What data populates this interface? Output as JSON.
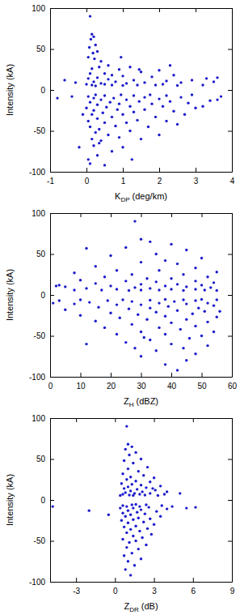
{
  "chart_data": [
    {
      "type": "scatter",
      "xlabel": [
        "K",
        "DP",
        " (deg/km)"
      ],
      "ylabel": "Intensity (kA)",
      "xlim": [
        -1,
        4
      ],
      "xticks": [
        -1,
        0,
        1,
        2,
        3,
        4
      ],
      "ylim": [
        -100,
        100
      ],
      "yticks": [
        -100,
        -50,
        0,
        50,
        100
      ],
      "series": [
        {
          "color": "#1a1acc",
          "marker": "circle",
          "x": [
            0.1,
            0.15,
            0.2,
            0.12,
            0.25,
            0.08,
            0.3,
            0.18,
            0.05,
            0.22,
            0.4,
            0.6,
            0.35,
            0.15,
            1.2,
            0.9,
            1.5,
            2.0,
            0.5,
            0.1,
            0.7,
            1.0,
            1.8,
            2.4,
            2.9,
            3.3,
            3.6,
            3.5,
            0.3,
            0.05,
            0.6,
            1.3,
            2.2,
            0.2,
            0.8,
            1.6,
            2.6,
            0.4,
            1.1,
            2.1,
            0.0,
            0.5,
            1.4,
            1.9,
            0.15,
            0.7,
            1.0,
            2.5,
            3.2,
            0.25,
            -0.3,
            -0.6,
            0.95,
            1.45,
            2.3,
            0.1,
            0.5,
            0.3,
            0.05,
            0.7,
            -0.2,
            0.2,
            1.0,
            0.4,
            0.15,
            0.9,
            1.5,
            0.6,
            0.25,
            1.2,
            2.0,
            0.35,
            0.1,
            0.8,
            1.7,
            2.5,
            0.5,
            1.1,
            0.05,
            1.4,
            2.2,
            0.3,
            0.7,
            1.9,
            0.15,
            1.0,
            2.7,
            0.45,
            1.3,
            2.4,
            0.2,
            0.85,
            1.6,
            3.0,
            0.0,
            0.55,
            1.2,
            2.1,
            0.3,
            0.9,
            1.8,
            2.8,
            0.1,
            0.65,
            1.45,
            2.3,
            3.4,
            0.4,
            1.1,
            2.0,
            0.2,
            0.75,
            1.6,
            2.6,
            3.7,
            0.05,
            0.5,
            1.3,
            2.2,
            0.25,
            0.95,
            1.75,
            2.9,
            -0.4,
            -0.8,
            -0.1,
            3.6,
            3.2,
            0.35,
            1.25
          ],
          "values": [
            90,
            68,
            65,
            62,
            55,
            52,
            47,
            45,
            40,
            38,
            35,
            30,
            28,
            26,
            28,
            25,
            22,
            24,
            20,
            20,
            18,
            17,
            16,
            18,
            12,
            14,
            15,
            10,
            15,
            14,
            13,
            12,
            11,
            10,
            10,
            9,
            9,
            8,
            8,
            7,
            7,
            7,
            6,
            6,
            6,
            6,
            5.5,
            5.5,
            6,
            5,
            9,
            12,
            40,
            25,
            30,
            -90,
            -92,
            -80,
            -85,
            -75,
            -70,
            -68,
            -70,
            -62,
            -60,
            -58,
            -60,
            -55,
            -52,
            -50,
            -55,
            -48,
            -45,
            -44,
            -45,
            -42,
            -40,
            -40,
            -38,
            -37,
            -38,
            -35,
            -33,
            -33,
            -30,
            -30,
            -30,
            -28,
            -27,
            -26,
            -25,
            -24,
            -24,
            -22,
            -22,
            -21,
            -20,
            -20,
            -18,
            -17,
            -17,
            -16,
            -15,
            -15,
            -14,
            -14,
            -13,
            -12,
            -12,
            -11,
            -10,
            -10,
            -9,
            -9,
            -8,
            -8,
            -7,
            -7,
            -7,
            -6,
            -6,
            -6,
            -6,
            -8,
            -10,
            -30,
            -12,
            -20,
            -65,
            -85
          ]
        }
      ]
    },
    {
      "type": "scatter",
      "xlabel": [
        "Z",
        "H",
        " (dBZ)"
      ],
      "ylabel": "Intensity (kA)",
      "xlim": [
        0,
        60
      ],
      "xticks": [
        0,
        10,
        20,
        30,
        40,
        50,
        60
      ],
      "ylim": [
        -100,
        100
      ],
      "yticks": [
        -100,
        -50,
        0,
        50,
        100
      ],
      "series": [
        {
          "color": "#1a1acc",
          "marker": "circle",
          "x": [
            28,
            30,
            33,
            40,
            25,
            12,
            45,
            35,
            20,
            50,
            38,
            30,
            42,
            15,
            48,
            22,
            36,
            55,
            8,
            27,
            44,
            52,
            18,
            32,
            40,
            3,
            10,
            25,
            48,
            35,
            54,
            15,
            30,
            42,
            50,
            20,
            38,
            5,
            45,
            28,
            53,
            12,
            33,
            40,
            22,
            48,
            17,
            36,
            51,
            26,
            44,
            8,
            30,
            55,
            2,
            42,
            38,
            45,
            30,
            48,
            35,
            28,
            52,
            40,
            25,
            33,
            46,
            12,
            50,
            38,
            22,
            30,
            54,
            43,
            18,
            36,
            48,
            27,
            40,
            52,
            15,
            32,
            45,
            23,
            55,
            38,
            10,
            29,
            47,
            20,
            35,
            51,
            42,
            5,
            26,
            33,
            49,
            16,
            39,
            54,
            22,
            30,
            45,
            8,
            36,
            52,
            13,
            27,
            41,
            48,
            19,
            33,
            55,
            3,
            24,
            44,
            10,
            38,
            50,
            1,
            56,
            31,
            44
          ],
          "values": [
            90,
            68,
            65,
            62,
            58,
            57,
            55,
            50,
            48,
            45,
            42,
            40,
            38,
            35,
            33,
            30,
            30,
            28,
            27,
            25,
            25,
            22,
            22,
            20,
            20,
            12,
            18,
            17,
            17,
            16,
            15,
            14,
            13,
            13,
            12,
            11,
            11,
            10,
            10,
            9,
            9,
            8,
            8,
            7,
            7,
            7,
            6,
            6,
            6,
            5.5,
            5.5,
            6,
            6,
            5.5,
            11,
            -92,
            -85,
            -80,
            -75,
            -72,
            -68,
            -65,
            -62,
            -60,
            -58,
            -55,
            -53,
            -60,
            -50,
            -48,
            -48,
            -45,
            -45,
            -42,
            -40,
            -40,
            -38,
            -36,
            -34,
            -33,
            -32,
            -30,
            -30,
            -28,
            -27,
            -26,
            -25,
            -24,
            -23,
            -22,
            -21,
            -20,
            -19,
            -18,
            -17,
            -16,
            -16,
            -15,
            -14,
            -13,
            -12,
            -12,
            -11,
            -11,
            -10,
            -10,
            -9,
            -8,
            -8,
            -7,
            -7,
            -6.5,
            -6,
            -7,
            -6,
            -6,
            -6,
            -5.5,
            -5.5,
            -10,
            -20,
            -52,
            -65
          ]
        }
      ]
    },
    {
      "type": "scatter",
      "xlabel": [
        "Z",
        "DR",
        " (dB)"
      ],
      "ylabel": "Intensity (kA)",
      "xlim": [
        -5,
        9
      ],
      "xticks": [
        -3,
        0,
        3,
        6,
        9
      ],
      "ylim": [
        -100,
        100
      ],
      "yticks": [
        -100,
        -50,
        0,
        50,
        100
      ],
      "series": [
        {
          "color": "#1a1acc",
          "marker": "circle",
          "x": [
            0.9,
            1.0,
            1.3,
            0.8,
            1.6,
            1.1,
            2.0,
            0.7,
            1.4,
            2.5,
            1.0,
            1.8,
            0.6,
            2.2,
            1.2,
            3.0,
            0.9,
            1.6,
            2.7,
            0.5,
            1.3,
            2.0,
            3.5,
            1.0,
            2.4,
            0.7,
            1.7,
            3.1,
            1.2,
            2.1,
            4.0,
            0.8,
            1.5,
            2.7,
            0.6,
            1.9,
            3.8,
            1.1,
            2.3,
            5.0,
            0.4,
            1.4,
            3.3,
            2.9,
            1.2,
            0.8,
            1.5,
            1.0,
            2.0,
            0.7,
            1.3,
            1.8,
            0.9,
            2.4,
            1.1,
            1.6,
            0.6,
            2.1,
            1.4,
            2.8,
            0.9,
            1.9,
            1.2,
            2.5,
            0.7,
            1.6,
            3.0,
            1.0,
            2.2,
            0.5,
            1.4,
            2.7,
            1.8,
            3.5,
            0.8,
            1.2,
            2.3,
            0.6,
            1.7,
            3.2,
            1.0,
            2.0,
            4.0,
            0.4,
            1.4,
            2.6,
            0.9,
            1.9,
            3.6,
            0.6,
            1.3,
            2.4,
            4.4,
            1.6,
            -4.8,
            -2.0,
            -0.5,
            5.5,
            6.2
          ],
          "values": [
            90,
            68,
            65,
            62,
            58,
            55,
            50,
            48,
            45,
            40,
            38,
            35,
            32,
            30,
            28,
            27,
            25,
            23,
            22,
            20,
            19,
            18,
            17,
            16,
            15,
            14,
            13,
            12,
            11,
            10,
            10,
            9,
            8,
            8,
            7,
            7,
            7,
            6,
            6,
            8,
            5.5,
            5.5,
            5.5,
            14,
            -92,
            -85,
            -80,
            -75,
            -72,
            -68,
            -65,
            -60,
            -58,
            -55,
            -52,
            -50,
            -48,
            -46,
            -44,
            -42,
            -40,
            -38,
            -36,
            -35,
            -33,
            -32,
            -30,
            -28,
            -27,
            -25,
            -24,
            -23,
            -22,
            -20,
            -20,
            -18,
            -17,
            -16,
            -15,
            -14,
            -13,
            -12,
            -11,
            -10,
            -10,
            -9,
            -8,
            -8,
            -7,
            -7,
            -6,
            -6,
            -8,
            -5.5,
            -8,
            -13,
            -18,
            -10,
            -9
          ]
        }
      ]
    }
  ]
}
